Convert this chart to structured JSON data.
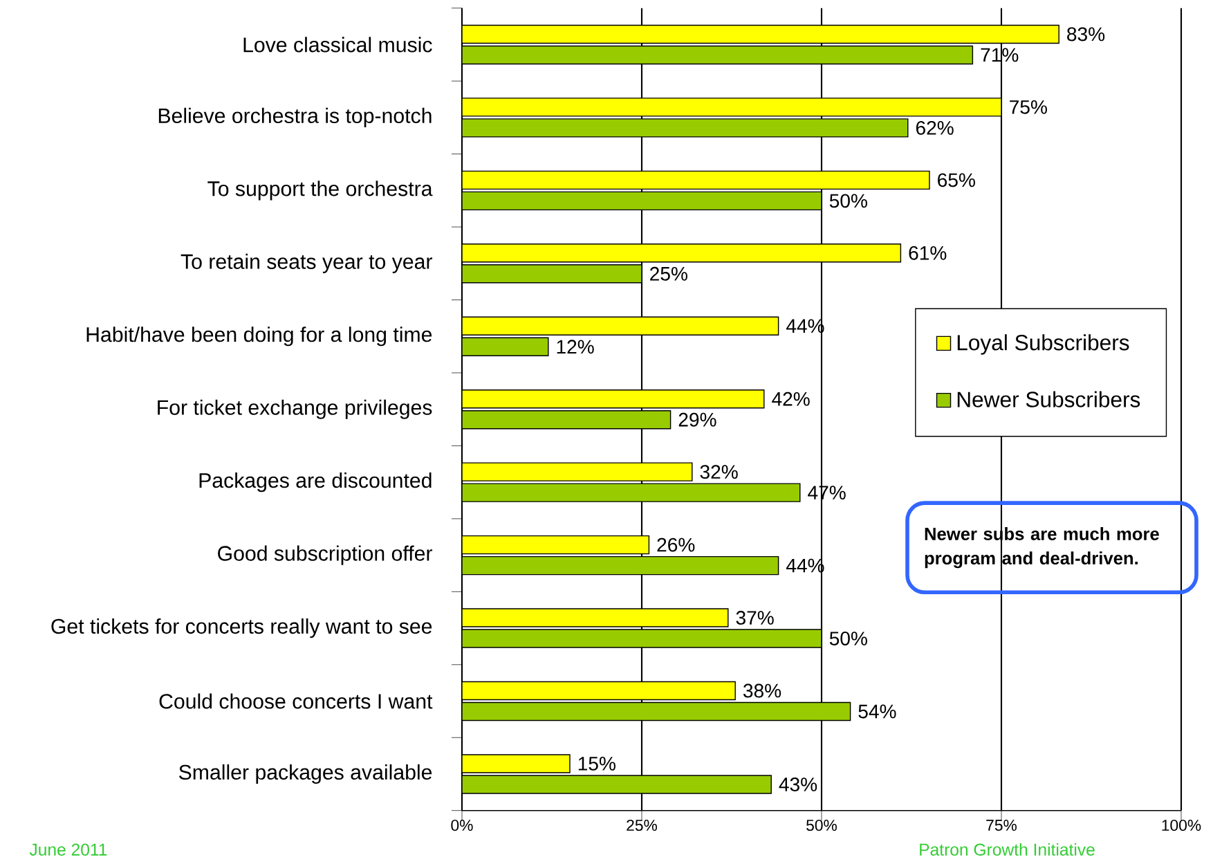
{
  "chart_data": {
    "type": "bar",
    "orientation": "horizontal",
    "categories": [
      "Love classical music",
      "Believe orchestra is top-notch",
      "To support the orchestra",
      "To retain seats year to year",
      "Habit/have been doing for a long time",
      "For ticket exchange privileges",
      "Packages are discounted",
      "Good subscription offer",
      "Get tickets for concerts really want to see",
      "Could choose concerts I want",
      "Smaller packages available"
    ],
    "series": [
      {
        "name": "Loyal Subscribers",
        "color": "#ffff00",
        "values": [
          83,
          75,
          65,
          61,
          44,
          42,
          32,
          26,
          37,
          38,
          15
        ],
        "value_labels": [
          "83%",
          "75%",
          "65%",
          "61%",
          "44%",
          "42%",
          "32%",
          "26%",
          "37%",
          "38%",
          "15%"
        ]
      },
      {
        "name": "Newer Subscribers",
        "color": "#99cc00",
        "values": [
          71,
          62,
          50,
          25,
          12,
          29,
          47,
          44,
          50,
          54,
          43
        ],
        "value_labels": [
          "71%",
          "62%",
          "50%",
          "25%",
          "12%",
          "29%",
          "47%",
          "44%",
          "50%",
          "54%",
          "43%"
        ]
      }
    ],
    "xlim": [
      0,
      100
    ],
    "xticks": [
      {
        "value": 0,
        "label": "0%"
      },
      {
        "value": 25,
        "label": "25%"
      },
      {
        "value": 50,
        "label": "50%"
      },
      {
        "value": 75,
        "label": "75%"
      },
      {
        "value": 100,
        "label": "100%"
      }
    ],
    "grid": "x",
    "legend": "right",
    "annotations": [
      "June 2011",
      "Patron Growth Initiative",
      "Newer subs are much more program and deal-driven."
    ]
  }
}
